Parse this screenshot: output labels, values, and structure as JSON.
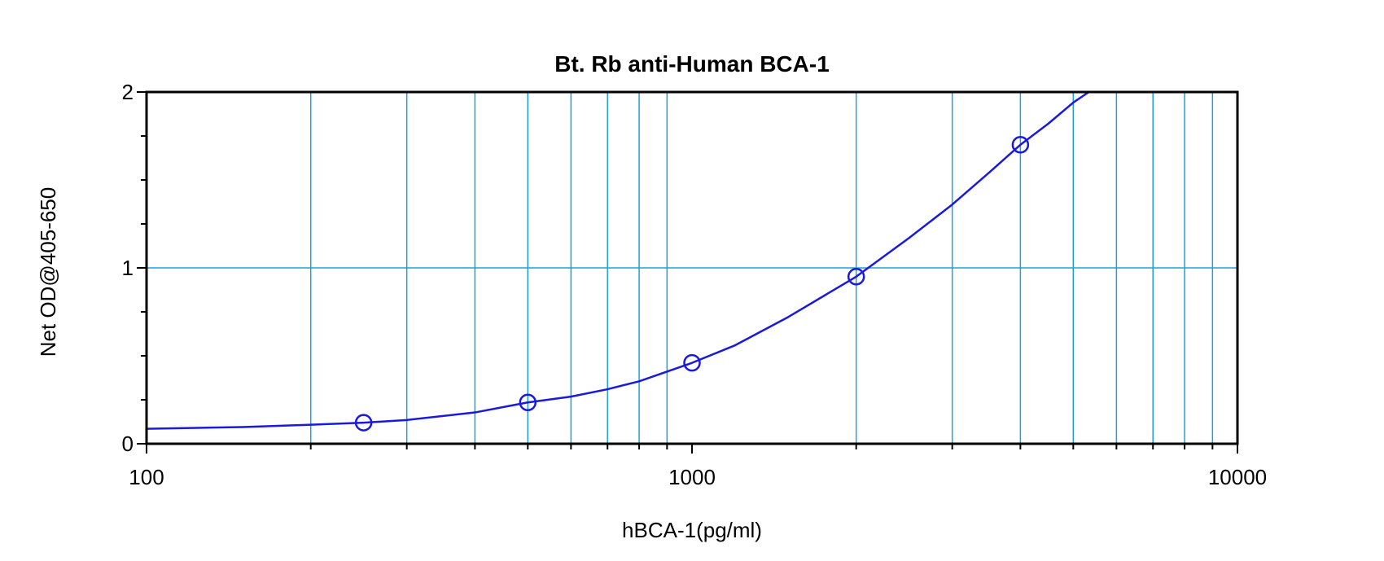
{
  "chart_data": {
    "type": "scatter",
    "title": "Bt. Rb anti-Human BCA-1",
    "xlabel": "hBCA-1(pg/ml)",
    "ylabel": "Net OD@405-650",
    "x_scale": "log",
    "xlim": [
      100,
      10000
    ],
    "ylim": [
      0,
      2
    ],
    "x_tick_labels": [
      "100",
      "1000",
      "10000"
    ],
    "x_tick_values": [
      100,
      1000,
      10000
    ],
    "y_tick_labels": [
      "0",
      "1",
      "2"
    ],
    "y_tick_values": [
      0,
      1,
      2
    ],
    "grid": true,
    "legend": "none",
    "series": [
      {
        "marker": "open-circle",
        "x": [
          250,
          500,
          1000,
          2000,
          4000
        ],
        "y": [
          0.12,
          0.235,
          0.46,
          0.95,
          1.7
        ]
      }
    ],
    "fit_curve": {
      "x": [
        100,
        150,
        200,
        250,
        300,
        400,
        500,
        600,
        700,
        800,
        1000,
        1200,
        1500,
        2000,
        2500,
        3000,
        3500,
        4000,
        4500,
        5000,
        5340
      ],
      "y": [
        0.085,
        0.095,
        0.108,
        0.12,
        0.135,
        0.178,
        0.235,
        0.268,
        0.31,
        0.355,
        0.46,
        0.56,
        0.72,
        0.95,
        1.17,
        1.36,
        1.54,
        1.7,
        1.82,
        1.94,
        2.0
      ]
    },
    "colors": {
      "series": "#1a1adb",
      "grid": "#1ea0dc",
      "axes": "#000000"
    }
  }
}
